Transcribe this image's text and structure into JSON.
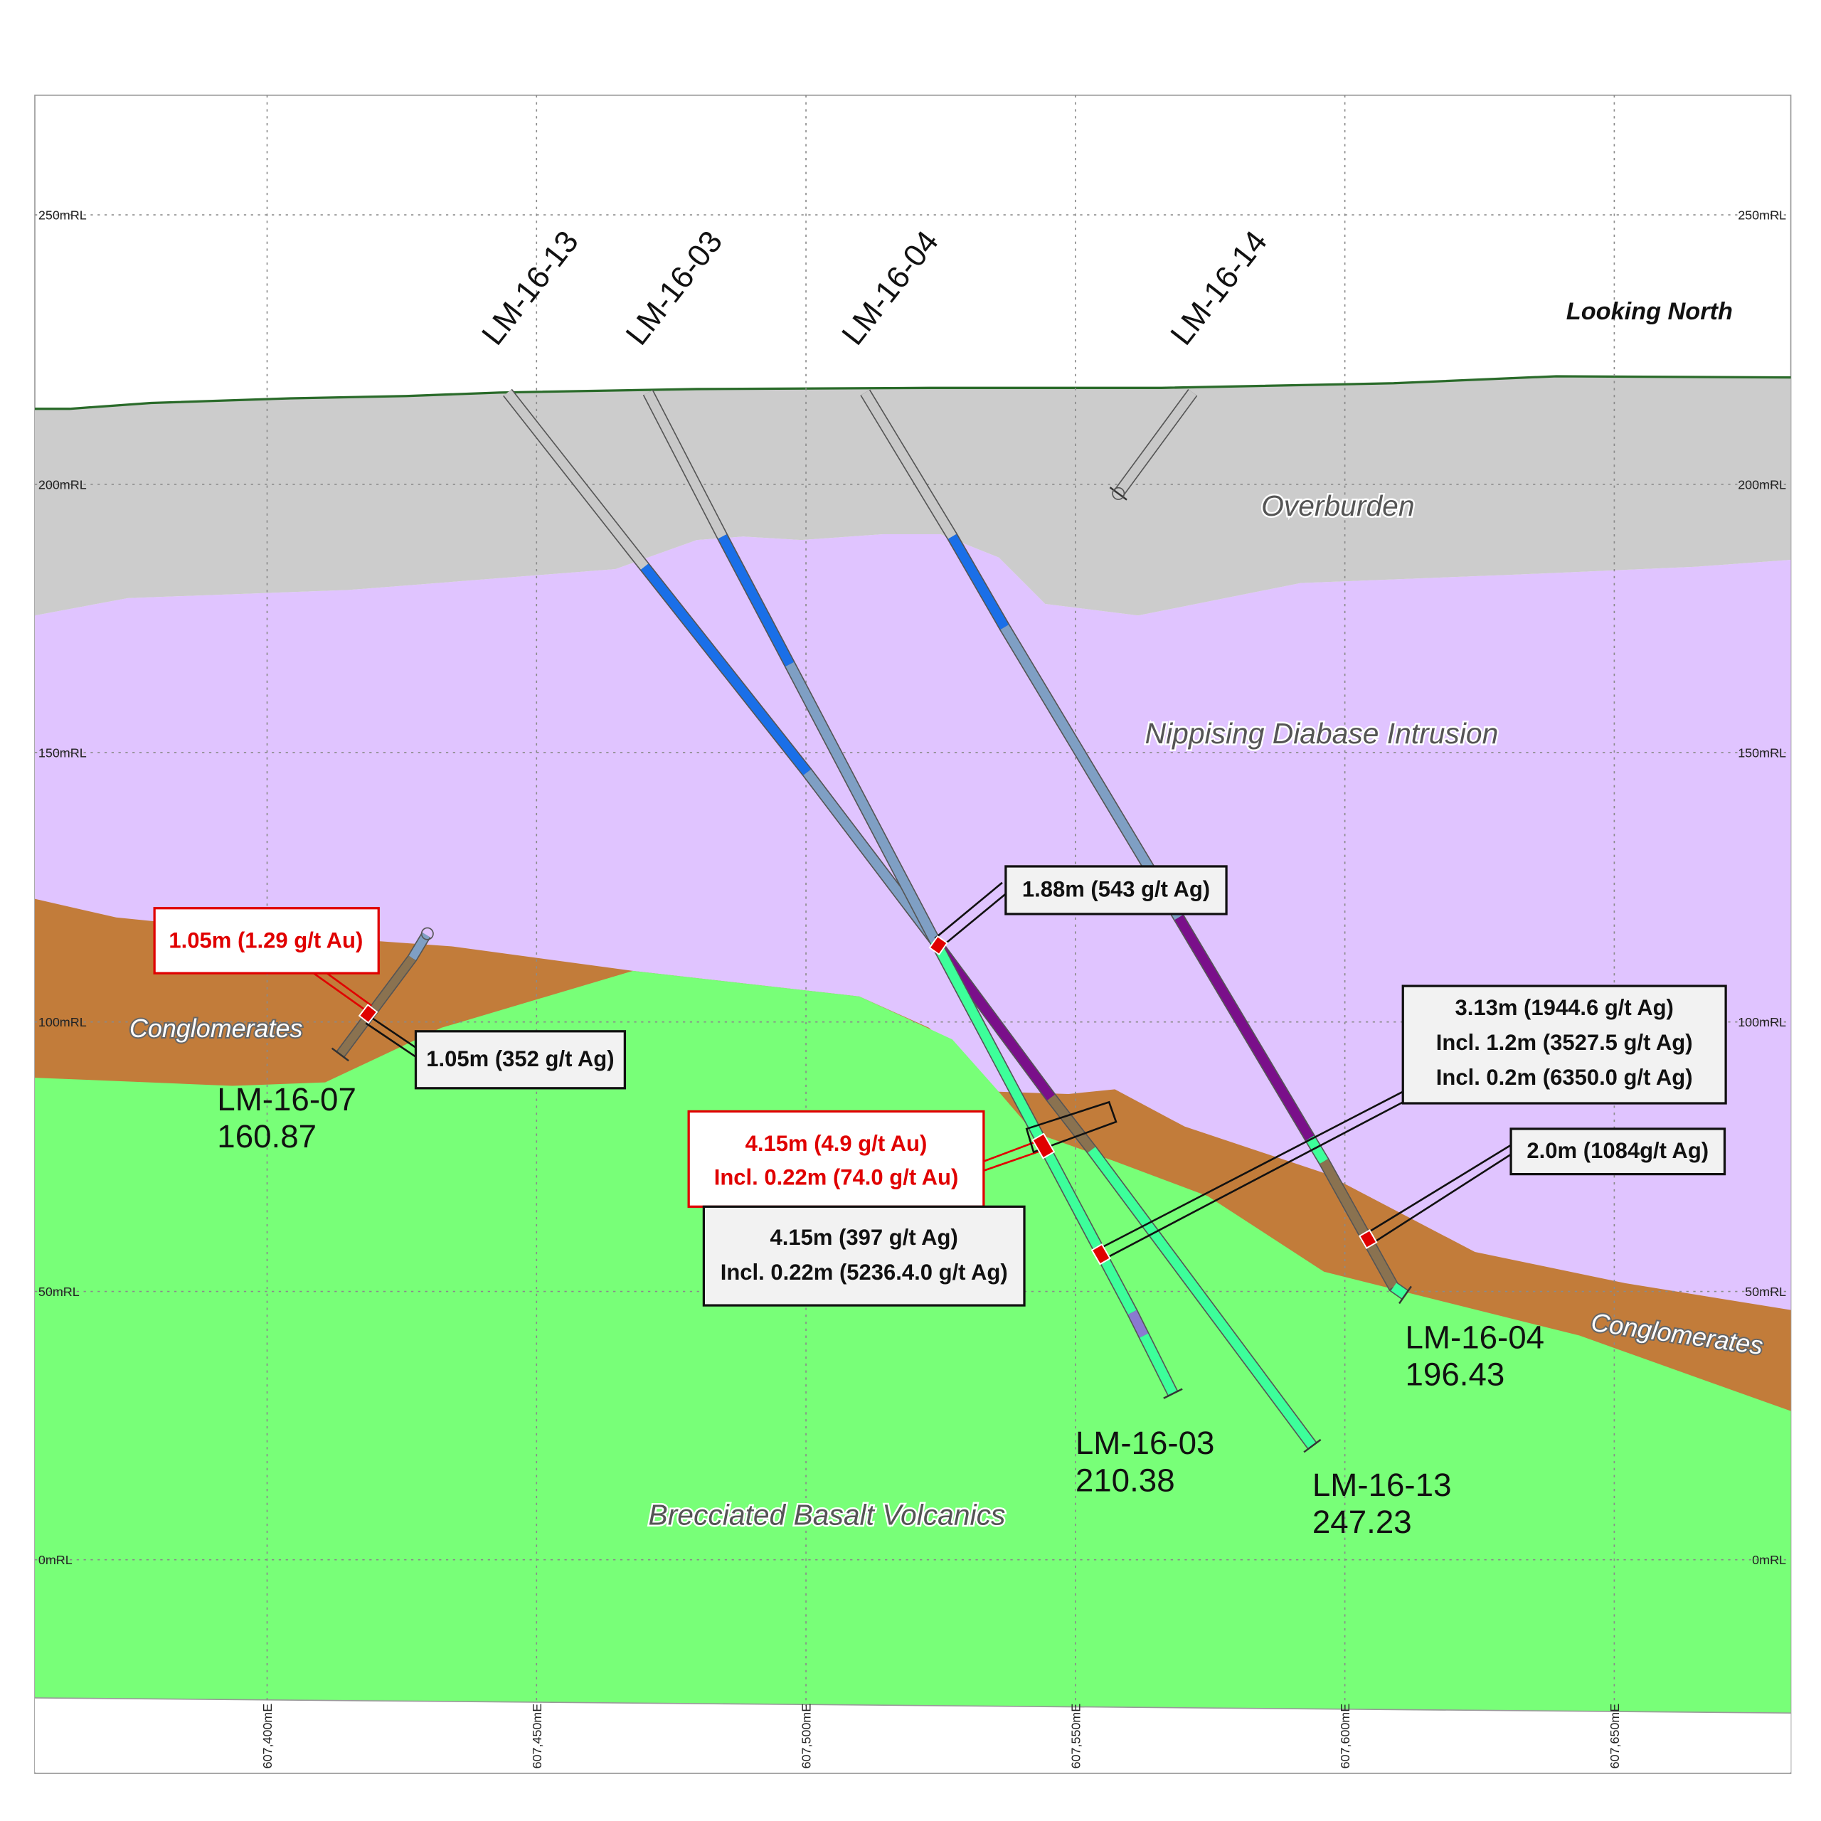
{
  "grid": {
    "rl_labels": [
      "250mRL",
      "200mRL",
      "150mRL",
      "100mRL",
      "50mRL",
      "0mRL"
    ],
    "me_labels": [
      "607,400mE",
      "607,450mE",
      "607,500mE",
      "607,550mE",
      "607,600mE",
      "607,650mE"
    ]
  },
  "view_label": "Looking North",
  "collar_labels": [
    "LM-16-13",
    "LM-16-03",
    "LM-16-04",
    "LM-16-14"
  ],
  "units": {
    "overburden": "Overburden",
    "diabase": "Nippising Diabase Intrusion",
    "conglomerates": "Conglomerates",
    "basalt": "Brecciated Basalt Volcanics"
  },
  "hole_ends": [
    {
      "hole": "LM-16-07",
      "depth": "160.87"
    },
    {
      "hole": "LM-16-03",
      "depth": "210.38"
    },
    {
      "hole": "LM-16-13",
      "depth": "247.23"
    },
    {
      "hole": "LM-16-04",
      "depth": "196.43"
    }
  ],
  "callouts": {
    "au_0705": [
      "1.05m (1.29 g/t Au)"
    ],
    "ag_0705": [
      "1.05m (352 g/t Ag)"
    ],
    "ag_188": [
      "1.88m (543 g/t Ag)"
    ],
    "ag_313": [
      "3.13m (1944.6 g/t Ag)",
      "Incl. 1.2m (3527.5 g/t Ag)",
      "Incl. 0.2m (6350.0 g/t Ag)"
    ],
    "ag_20": [
      "2.0m (1084g/t Ag)"
    ],
    "au_415": [
      "4.15m (4.9 g/t Au)",
      "Incl. 0.22m (74.0 g/t Au)"
    ],
    "ag_415": [
      "4.15m (397 g/t Ag)",
      "Incl. 0.22m (5236.4.0 g/t Ag)"
    ]
  }
}
